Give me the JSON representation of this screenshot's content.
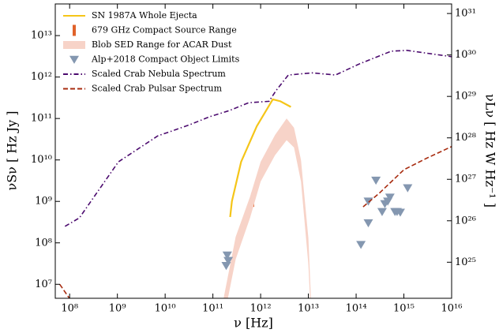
{
  "chart_data": {
    "type": "line",
    "xlabel": "ν [Hz]",
    "ylabel": "νSν [ Hz Jy ]",
    "y2label": "νLν [ Hz W Hz⁻¹ ]",
    "log_x": true,
    "log_y": true,
    "legend": "upper left",
    "xlim": [
      50000000.0,
      1e+16
    ],
    "ylim": [
      4600000.0,
      58000000000000.0
    ],
    "y2lim": [
      1.35e+24,
      1.7e+31
    ],
    "xticks": [
      {
        "value": 100000000.0,
        "label": "10⁸"
      },
      {
        "value": 1000000000.0,
        "label": "10⁹"
      },
      {
        "value": 10000000000.0,
        "label": "10¹⁰"
      },
      {
        "value": 100000000000.0,
        "label": "10¹¹"
      },
      {
        "value": 1000000000000.0,
        "label": "10¹²"
      },
      {
        "value": 10000000000000.0,
        "label": "10¹³"
      },
      {
        "value": 100000000000000.0,
        "label": "10¹⁴"
      },
      {
        "value": 1000000000000000.0,
        "label": "10¹⁵"
      },
      {
        "value": 1e+16,
        "label": "10¹⁶"
      }
    ],
    "yticks": [
      {
        "value": 10000000.0,
        "label": "10⁷"
      },
      {
        "value": 100000000.0,
        "label": "10⁸"
      },
      {
        "value": 1000000000.0,
        "label": "10⁹"
      },
      {
        "value": 10000000000.0,
        "label": "10¹⁰"
      },
      {
        "value": 100000000000.0,
        "label": "10¹¹"
      },
      {
        "value": 1000000000000.0,
        "label": "10¹²"
      },
      {
        "value": 10000000000000.0,
        "label": "10¹³"
      }
    ],
    "y2ticks": [
      {
        "value": 1e+25,
        "label": "10²⁵"
      },
      {
        "value": 1e+26,
        "label": "10²⁶"
      },
      {
        "value": 1e+27,
        "label": "10²⁷"
      },
      {
        "value": 1e+28,
        "label": "10²⁸"
      },
      {
        "value": 1e+29,
        "label": "10²⁹"
      },
      {
        "value": 1e+30,
        "label": "10³⁰"
      },
      {
        "value": 1e+31,
        "label": "10³¹"
      }
    ],
    "series": [
      {
        "name": "SN 1987A Whole Ejecta",
        "color": "#f5c518",
        "style": "line",
        "x": [
          230000000000.0,
          250000000000.0,
          390000000000.0,
          830000000000.0,
          1800000000000.0,
          2600000000000.0,
          4300000000000.0
        ],
        "values": [
          420000000.0,
          1000000000.0,
          9000000000.0,
          65000000000.0,
          290000000000.0,
          260000000000.0,
          190000000000.0
        ]
      },
      {
        "name": "679 GHz Compact Source Range",
        "color": "#e0622a",
        "style": "errorbar",
        "x": [
          680000000000.0
        ],
        "low": [
          740000000.0
        ],
        "high": [
          1600000000.0
        ]
      },
      {
        "name": "Blob SED Range for ACAR Dust",
        "color": "#f7d3c8",
        "style": "band",
        "x": [
          170000000000.0,
          300000000000.0,
          600000000000.0,
          1000000000000.0,
          2000000000000.0,
          3500000000000.0,
          5000000000000.0,
          7000000000000.0,
          10000000000000.0,
          11500000000000.0
        ],
        "low": [
          1500000.0,
          40000000.0,
          400000000.0,
          3000000000.0,
          13000000000.0,
          30000000000.0,
          20000000000.0,
          3000000000.0,
          30000000.0,
          1000000.0
        ],
        "high": [
          5000000.0,
          140000000.0,
          1300000000.0,
          9000000000.0,
          40000000000.0,
          100000000000.0,
          60000000000.0,
          10000000000.0,
          130000000.0,
          3000000.0
        ]
      },
      {
        "name": "Alp+2018 Compact Object Limits",
        "color": "#8497b0",
        "style": "marker",
        "x": [
          200000000000.0,
          210000000000.0,
          190000000000.0,
          126000000000000.0,
          180000000000000.0,
          180000000000000.0,
          260000000000000.0,
          350000000000000.0,
          400000000000000.0,
          460000000000000.0,
          510000000000000.0,
          650000000000000.0,
          720000000000000.0,
          840000000000000.0,
          1200000000000000.0
        ],
        "values": [
          50000000.0,
          37000000.0,
          28000000.0,
          90000000.0,
          300000000.0,
          1000000000.0,
          3200000000.0,
          560000000.0,
          870000000.0,
          1000000000.0,
          1250000000.0,
          560000000.0,
          560000000.0,
          540000000.0,
          2100000000.0
        ]
      },
      {
        "name": "Scaled Crab Nebula Spectrum",
        "color": "#4b0a6e",
        "style": "dashdot",
        "x": [
          80000000.0,
          160000000.0,
          1050000000.0,
          7000000000.0,
          32000000000.0,
          85000000000.0,
          220000000000.0,
          560000000000.0,
          1500000000000.0,
          2100000000000.0,
          3800000000000.0,
          12000000000000.0,
          37000000000000.0,
          120000000000000.0,
          540000000000000.0,
          1150000000000000.0,
          1e+16
        ],
        "values": [
          250000000.0,
          400000000.0,
          9000000000.0,
          38000000000.0,
          70000000000.0,
          110000000000.0,
          155000000000.0,
          240000000000.0,
          260000000000.0,
          470000000000.0,
          1120000000000.0,
          1260000000000.0,
          1120000000000.0,
          2100000000000.0,
          4200000000000.0,
          4400000000000.0,
          3100000000000.0
        ]
      },
      {
        "name": "Scaled Crab Pulsar Spectrum",
        "color": "#a82c10",
        "style": "dashed",
        "x": [
          62000000.0,
          100000000.0,
          1000000000.0,
          140000000000000.0,
          300000000000000.0,
          1000000000000000.0,
          3000000000000000.0,
          1e+16
        ],
        "values": [
          10000000.0,
          4500000.0,
          null,
          740000000.0,
          1550000000.0,
          5800000000.0,
          11000000000.0,
          21000000000.0
        ]
      }
    ]
  }
}
